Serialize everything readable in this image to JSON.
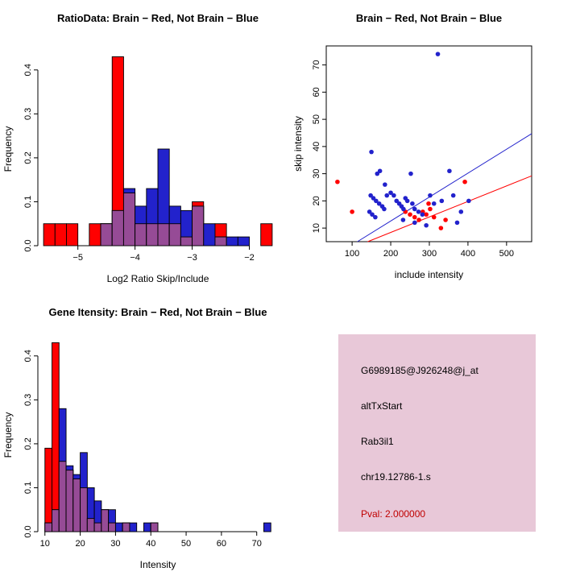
{
  "colors": {
    "red": "#FF0000",
    "blue": "#2222CC",
    "overlap": "#964B96",
    "pval_text": "#C00000",
    "info_bg": "#E8C8D8",
    "axis": "#000000"
  },
  "chart_data": [
    {
      "id": "ratio_histogram",
      "type": "bar",
      "title": "RatioData: Brain − Red, Not Brain − Blue",
      "xlabel": "Log2 Ratio Skip/Include",
      "ylabel": "Frequency",
      "xlim": [
        -5.7,
        -1.5
      ],
      "ylim": [
        0,
        0.44
      ],
      "xticks": [
        -5,
        -4,
        -3,
        -2
      ],
      "xtick_labels": [
        "−5",
        "−4",
        "−3",
        "−2"
      ],
      "yticks": [
        0,
        0.1,
        0.2,
        0.3,
        0.4
      ],
      "ytick_labels": [
        "0.0",
        "0.1",
        "0.2",
        "0.3",
        "0.4"
      ],
      "bin_start": -5.6,
      "bin_width": 0.2,
      "legend": "Brain = red, Not Brain = blue, overlap = purple",
      "series": [
        {
          "name": "Brain (red)",
          "values": [
            0.05,
            0.05,
            0.05,
            0,
            0.05,
            0.05,
            0.43,
            0.12,
            0.05,
            0.05,
            0.05,
            0.05,
            0.02,
            0.1,
            0,
            0.05,
            0,
            0,
            0,
            0.05
          ]
        },
        {
          "name": "Not Brain (blue)",
          "values": [
            0,
            0,
            0,
            0,
            0,
            0.05,
            0.08,
            0.13,
            0.09,
            0.13,
            0.22,
            0.09,
            0.08,
            0.09,
            0.05,
            0.02,
            0.02,
            0.02,
            0,
            0
          ]
        }
      ]
    },
    {
      "id": "intensity_scatter",
      "type": "scatter",
      "title": "Brain − Red, Not Brain − Blue",
      "xlabel": "include intensity",
      "ylabel": "skip intensity",
      "xlim": [
        33,
        565
      ],
      "ylim": [
        5,
        77
      ],
      "xticks": [
        100,
        200,
        300,
        400,
        500
      ],
      "xtick_labels": [
        "100",
        "200",
        "300",
        "400",
        "500"
      ],
      "yticks": [
        10,
        20,
        30,
        40,
        50,
        60,
        70
      ],
      "ytick_labels": [
        "10",
        "20",
        "30",
        "40",
        "50",
        "60",
        "70"
      ],
      "series": [
        {
          "name": "Brain (red)",
          "color_key": "red",
          "points": [
            [
              62,
              27
            ],
            [
              100,
              16
            ],
            [
              238,
              16
            ],
            [
              250,
              15
            ],
            [
              262,
              14
            ],
            [
              273,
              13
            ],
            [
              283,
              16
            ],
            [
              292,
              15
            ],
            [
              298,
              19
            ],
            [
              302,
              17
            ],
            [
              312,
              14
            ],
            [
              330,
              10
            ],
            [
              342,
              13
            ],
            [
              392,
              27
            ]
          ]
        },
        {
          "name": "Not Brain (blue)",
          "color_key": "blue",
          "points": [
            [
              150,
              38
            ],
            [
              165,
              30
            ],
            [
              172,
              31
            ],
            [
              185,
              26
            ],
            [
              148,
              22
            ],
            [
              155,
              21
            ],
            [
              162,
              20
            ],
            [
              170,
              19
            ],
            [
              178,
              18
            ],
            [
              183,
              17
            ],
            [
              145,
              16
            ],
            [
              152,
              15
            ],
            [
              160,
              14
            ],
            [
              190,
              22
            ],
            [
              200,
              23
            ],
            [
              208,
              22
            ],
            [
              215,
              20
            ],
            [
              222,
              19
            ],
            [
              228,
              18
            ],
            [
              233,
              17
            ],
            [
              238,
              21
            ],
            [
              243,
              20
            ],
            [
              252,
              30
            ],
            [
              256,
              19
            ],
            [
              262,
              17
            ],
            [
              272,
              16
            ],
            [
              282,
              15
            ],
            [
              302,
              22
            ],
            [
              312,
              19
            ],
            [
              322,
              74
            ],
            [
              332,
              20
            ],
            [
              352,
              31
            ],
            [
              362,
              22
            ],
            [
              382,
              16
            ],
            [
              402,
              20
            ],
            [
              232,
              13
            ],
            [
              262,
              12
            ],
            [
              292,
              11
            ],
            [
              372,
              12
            ]
          ]
        }
      ],
      "lines": [
        {
          "name": "Not Brain fit",
          "color_key": "blue",
          "intercept": -5,
          "slope": 0.088
        },
        {
          "name": "Brain fit",
          "color_key": "red",
          "intercept": -3,
          "slope": 0.057
        }
      ]
    },
    {
      "id": "gene_intensity_histogram",
      "type": "bar",
      "title": "Gene Itensity: Brain − Red, Not Brain − Blue",
      "xlabel": "Intensity",
      "ylabel": "Frequency",
      "xlim": [
        8,
        76
      ],
      "ylim": [
        0,
        0.44
      ],
      "xticks": [
        10,
        20,
        30,
        40,
        50,
        60,
        70
      ],
      "xtick_labels": [
        "10",
        "20",
        "30",
        "40",
        "50",
        "60",
        "70"
      ],
      "yticks": [
        0,
        0.1,
        0.2,
        0.3,
        0.4
      ],
      "ytick_labels": [
        "0.0",
        "0.1",
        "0.2",
        "0.3",
        "0.4"
      ],
      "bin_start": 10,
      "bin_width": 2,
      "legend": "Brain = red, Not Brain = blue, overlap = purple",
      "series": [
        {
          "name": "Brain (red)",
          "values": [
            0.19,
            0.43,
            0.16,
            0.14,
            0.12,
            0.1,
            0.03,
            0.02,
            0.05,
            0.02,
            0,
            0.02,
            0,
            0,
            0,
            0.02,
            0,
            0,
            0,
            0,
            0,
            0,
            0,
            0,
            0,
            0,
            0,
            0,
            0,
            0,
            0,
            0
          ]
        },
        {
          "name": "Not Brain (blue)",
          "values": [
            0.02,
            0.05,
            0.28,
            0.15,
            0.13,
            0.18,
            0.1,
            0.07,
            0.05,
            0.05,
            0.02,
            0.02,
            0.02,
            0,
            0.02,
            0.02,
            0,
            0,
            0,
            0,
            0,
            0,
            0,
            0,
            0,
            0,
            0,
            0,
            0,
            0,
            0,
            0.02
          ]
        }
      ]
    }
  ],
  "info_panel": {
    "probe_id": "G6989185@J926248@j_at",
    "event_type": "altTxStart",
    "gene": "Rab3il1",
    "location": "chr19.12786-1.s",
    "pval": "Pval: 2.000000"
  }
}
